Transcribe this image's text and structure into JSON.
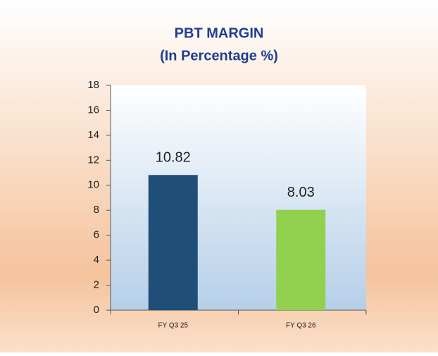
{
  "chart_data": {
    "type": "bar",
    "title": "PBT MARGIN",
    "subtitle": "(In Percentage %)",
    "categories": [
      "FY Q3 25",
      "FY Q3 26"
    ],
    "values": [
      10.82,
      8.03
    ],
    "colors": [
      "#1f4e79",
      "#92d050"
    ],
    "ylim": [
      0,
      18
    ],
    "yticks": [
      0,
      2,
      4,
      6,
      8,
      10,
      12,
      14,
      16,
      18
    ]
  }
}
